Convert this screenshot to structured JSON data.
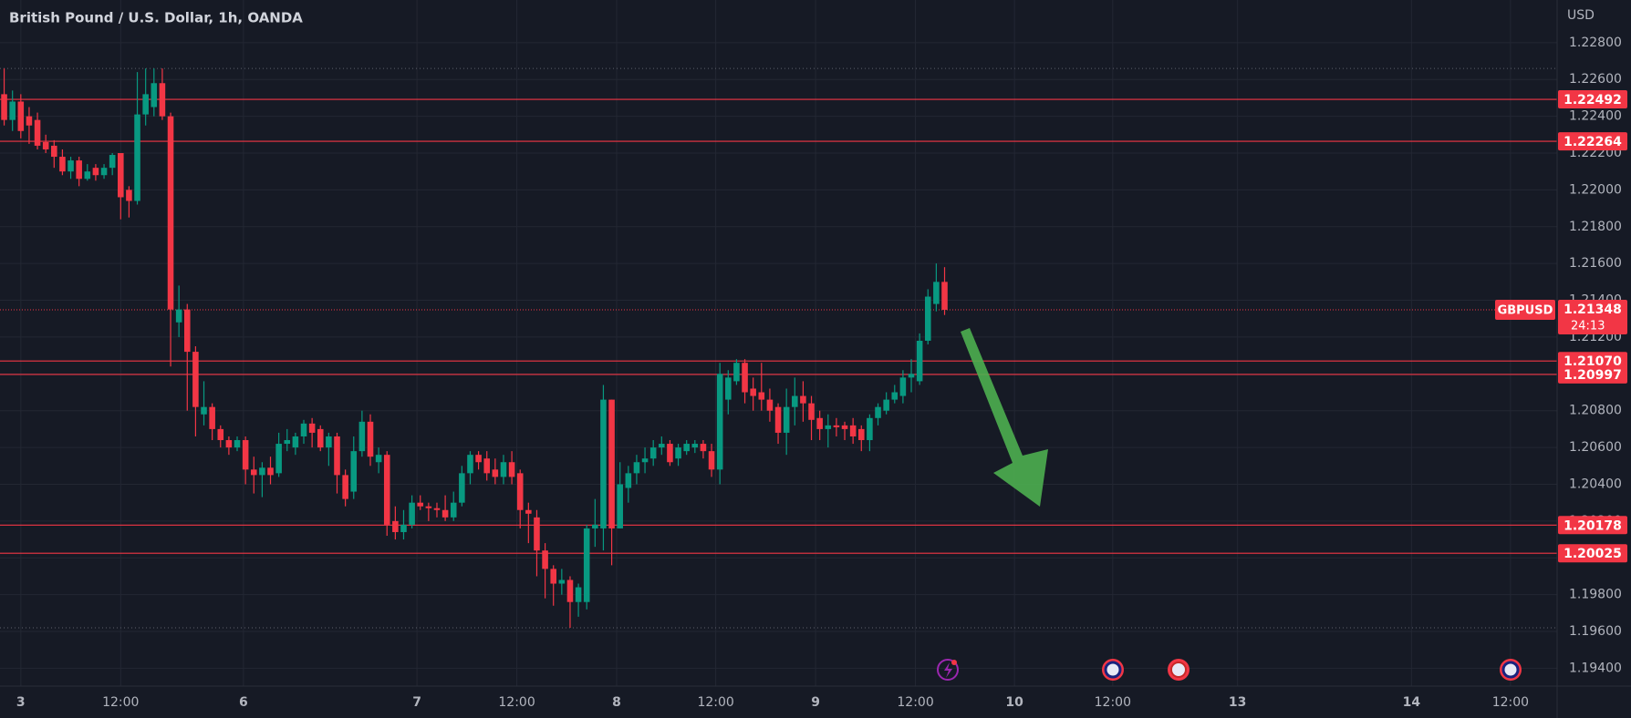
{
  "chart_data": {
    "type": "candlestick",
    "title": "British Pound / U.S. Dollar, 1h, OANDA",
    "currency": "USD",
    "symbol": "GBPUSD",
    "countdown": "24:13",
    "x": [
      0,
      1,
      2,
      3,
      4,
      5,
      6,
      7,
      8,
      9,
      10,
      11,
      12,
      13,
      14,
      15,
      16,
      17,
      18,
      19,
      20,
      21,
      22,
      23,
      24,
      25,
      26,
      27,
      28,
      29,
      30,
      31,
      32,
      33,
      34,
      35,
      36,
      37,
      38,
      39,
      40,
      41,
      42,
      43,
      44,
      45,
      46,
      47,
      48,
      49,
      50,
      51,
      52,
      53,
      54,
      55,
      56,
      57,
      58,
      59,
      60,
      61,
      62,
      63,
      64,
      65,
      66,
      67,
      68,
      69,
      70,
      71,
      72,
      73,
      74,
      75,
      76,
      77,
      78,
      79,
      80,
      81,
      82,
      83,
      84,
      85,
      86,
      87,
      88,
      89,
      90,
      91,
      92,
      93,
      94,
      95,
      96,
      97,
      98,
      99,
      100,
      101,
      102,
      103,
      104,
      105,
      106,
      107,
      108,
      109,
      110,
      111,
      112,
      113
    ],
    "open": [
      1.2252,
      1.2238,
      1.2248,
      1.224,
      1.2238,
      1.2226,
      1.2224,
      1.2218,
      1.221,
      1.2216,
      1.2206,
      1.2212,
      1.2208,
      1.2212,
      1.222,
      1.22,
      1.2194,
      1.2241,
      1.2245,
      1.2258,
      1.224,
      1.2128,
      1.2135,
      1.2112,
      1.2078,
      1.2082,
      1.207,
      1.2064,
      1.206,
      1.2064,
      1.2048,
      1.2045,
      1.2049,
      1.2046,
      1.2062,
      1.206,
      1.2066,
      1.2073,
      1.207,
      1.206,
      1.2066,
      1.2045,
      1.2036,
      1.2058,
      1.2074,
      1.2052,
      1.2056,
      1.202,
      1.2014,
      1.2018,
      1.203,
      1.2028,
      1.2027,
      1.2026,
      1.2022,
      1.203,
      1.2046,
      1.2056,
      1.2054,
      1.2048,
      1.2044,
      1.2052,
      1.2046,
      1.2026,
      1.2022,
      1.2004,
      1.1994,
      1.1986,
      1.1988,
      1.1976,
      1.1976,
      1.2016,
      1.2016,
      1.2086,
      1.2016,
      1.2038,
      1.2046,
      1.2052,
      1.2054,
      1.206,
      1.2062,
      1.2054,
      1.2058,
      1.206,
      1.2062,
      1.2058,
      1.2048,
      1.2086,
      1.2096,
      1.2106,
      1.2092,
      1.209,
      1.2086,
      1.2082,
      1.2068,
      1.2082,
      1.2088,
      1.2084,
      1.2076,
      1.207,
      1.2072,
      1.2072,
      1.2072,
      1.207,
      1.2064,
      1.2076,
      1.208,
      1.2086,
      1.2088,
      1.2098,
      1.2096,
      1.2118,
      1.2138,
      1.215
    ],
    "high": [
      1.2266,
      1.2254,
      1.2252,
      1.2245,
      1.2242,
      1.223,
      1.2227,
      1.2222,
      1.2218,
      1.2218,
      1.2214,
      1.2214,
      1.2214,
      1.222,
      1.222,
      1.2202,
      1.2264,
      1.2266,
      1.2266,
      1.2266,
      1.2242,
      1.2148,
      1.2138,
      1.2115,
      1.2096,
      1.2084,
      1.2072,
      1.2066,
      1.2066,
      1.2066,
      1.2055,
      1.2052,
      1.2055,
      1.2068,
      1.207,
      1.2068,
      1.2075,
      1.2076,
      1.2072,
      1.2068,
      1.2068,
      1.2048,
      1.2066,
      1.208,
      1.2078,
      1.206,
      1.2058,
      1.2028,
      1.2026,
      1.2034,
      1.2034,
      1.203,
      1.203,
      1.2034,
      1.2036,
      1.205,
      1.2058,
      1.2058,
      1.2058,
      1.2054,
      1.2056,
      1.2058,
      1.2048,
      1.203,
      1.2026,
      1.2008,
      1.1996,
      1.1994,
      1.199,
      1.1986,
      1.2018,
      1.2032,
      1.2094,
      1.2086,
      1.2052,
      1.205,
      1.2056,
      1.206,
      1.2064,
      1.2066,
      1.2064,
      1.2062,
      1.2064,
      1.2064,
      1.2064,
      1.2062,
      1.2106,
      1.2102,
      1.2108,
      1.2108,
      1.2098,
      1.2106,
      1.2092,
      1.2084,
      1.2092,
      1.2098,
      1.2096,
      1.2088,
      1.208,
      1.2078,
      1.2076,
      1.2074,
      1.2076,
      1.2072,
      1.2078,
      1.2084,
      1.209,
      1.2094,
      1.2102,
      1.2108,
      1.2122,
      1.2146,
      1.216,
      1.2158
    ],
    "low": [
      1.2235,
      1.2232,
      1.2228,
      1.2225,
      1.2222,
      1.222,
      1.2212,
      1.2208,
      1.2206,
      1.2202,
      1.2205,
      1.2205,
      1.2206,
      1.2208,
      1.2184,
      1.2185,
      1.2192,
      1.2235,
      1.224,
      1.2238,
      1.2104,
      1.212,
      1.208,
      1.2066,
      1.2072,
      1.2064,
      1.206,
      1.2056,
      1.2058,
      1.204,
      1.2035,
      1.2033,
      1.204,
      1.2044,
      1.2058,
      1.2056,
      1.2062,
      1.206,
      1.2058,
      1.205,
      1.2035,
      1.2028,
      1.2032,
      1.2055,
      1.205,
      1.2046,
      1.2012,
      1.201,
      1.201,
      1.2016,
      1.2026,
      1.202,
      1.2022,
      1.202,
      1.202,
      1.2028,
      1.204,
      1.2048,
      1.2042,
      1.204,
      1.204,
      1.204,
      1.2016,
      1.2008,
      1.199,
      1.1978,
      1.1974,
      1.198,
      1.1962,
      1.1968,
      1.1972,
      1.2006,
      1.2004,
      1.1996,
      1.2016,
      1.203,
      1.204,
      1.2046,
      1.205,
      1.2056,
      1.205,
      1.205,
      1.2056,
      1.2057,
      1.2054,
      1.2044,
      1.204,
      1.2078,
      1.2094,
      1.2084,
      1.208,
      1.208,
      1.2074,
      1.2062,
      1.2056,
      1.2072,
      1.2074,
      1.2064,
      1.2064,
      1.206,
      1.2066,
      1.2064,
      1.2062,
      1.2058,
      1.2058,
      1.2072,
      1.2078,
      1.2084,
      1.2084,
      1.209,
      1.2094,
      1.2116,
      1.2134,
      1.2132
    ],
    "close": [
      1.2238,
      1.2248,
      1.2232,
      1.2235,
      1.2224,
      1.2222,
      1.2218,
      1.221,
      1.2216,
      1.2206,
      1.221,
      1.2208,
      1.2212,
      1.2219,
      1.2196,
      1.2194,
      1.2241,
      1.2252,
      1.2258,
      1.224,
      1.2135,
      1.2135,
      1.2112,
      1.2082,
      1.2082,
      1.207,
      1.2064,
      1.206,
      1.2064,
      1.2048,
      1.2045,
      1.2049,
      1.2045,
      1.2062,
      1.2064,
      1.2066,
      1.2073,
      1.2068,
      1.206,
      1.2066,
      1.2045,
      1.2032,
      1.2058,
      1.2074,
      1.2055,
      1.2056,
      1.2018,
      1.2014,
      1.2018,
      1.203,
      1.2028,
      1.2027,
      1.2026,
      1.2022,
      1.203,
      1.2046,
      1.2056,
      1.2052,
      1.2046,
      1.2044,
      1.2052,
      1.2044,
      1.2026,
      1.2024,
      1.2004,
      1.1994,
      1.1986,
      1.1988,
      1.1976,
      1.1984,
      1.2016,
      1.2018,
      1.2086,
      1.2016,
      1.204,
      1.2046,
      1.2052,
      1.2054,
      1.206,
      1.2062,
      1.2052,
      1.206,
      1.2062,
      1.2062,
      1.2058,
      1.2048,
      1.21,
      1.2098,
      1.2106,
      1.209,
      1.2088,
      1.2086,
      1.208,
      1.2068,
      1.2082,
      1.2088,
      1.2084,
      1.2075,
      1.207,
      1.2072,
      1.2071,
      1.207,
      1.2066,
      1.2064,
      1.2076,
      1.2082,
      1.2086,
      1.209,
      1.2098,
      1.21,
      1.2118,
      1.2142,
      1.215,
      1.21348
    ],
    "up_color": "#089981",
    "down_color": "#f23645",
    "level_color": "#f23645",
    "xlim": [
      -0.5,
      186.6
    ],
    "xticks": [
      {
        "value": 2,
        "label": "3"
      },
      {
        "value": 14,
        "label": "12:00"
      },
      {
        "value": 28.75,
        "label": "6"
      },
      {
        "value": 49.6,
        "label": "7"
      },
      {
        "value": 61.6,
        "label": "12:00"
      },
      {
        "value": 73.6,
        "label": "8"
      },
      {
        "value": 85.5,
        "label": "12:00"
      },
      {
        "value": 97.5,
        "label": "9"
      },
      {
        "value": 109.5,
        "label": "12:00"
      },
      {
        "value": 121.4,
        "label": "10"
      },
      {
        "value": 133.2,
        "label": "12:00"
      },
      {
        "value": 148.2,
        "label": "13"
      },
      {
        "value": 169.1,
        "label": "14"
      },
      {
        "value": 181,
        "label": "12:00"
      }
    ],
    "ylim": [
      1.19303,
      1.23032
    ],
    "yticks": [
      {
        "value": 1.194,
        "label": "1.19400"
      },
      {
        "value": 1.196,
        "label": "1.19600"
      },
      {
        "value": 1.198,
        "label": "1.19800"
      },
      {
        "value": 1.2,
        "label": "1.20000"
      },
      {
        "value": 1.202,
        "label": "1.20200"
      },
      {
        "value": 1.204,
        "label": "1.20400"
      },
      {
        "value": 1.206,
        "label": "1.20600"
      },
      {
        "value": 1.208,
        "label": "1.20800"
      },
      {
        "value": 1.21,
        "label": "1.21000"
      },
      {
        "value": 1.212,
        "label": "1.21200"
      },
      {
        "value": 1.214,
        "label": "1.21400"
      },
      {
        "value": 1.216,
        "label": "1.21600"
      },
      {
        "value": 1.218,
        "label": "1.21800"
      },
      {
        "value": 1.22,
        "label": "1.22000"
      },
      {
        "value": 1.222,
        "label": "1.22200"
      },
      {
        "value": 1.224,
        "label": "1.22400"
      },
      {
        "value": 1.226,
        "label": "1.22600"
      },
      {
        "value": 1.228,
        "label": "1.22800"
      }
    ],
    "grid": true,
    "levels": [
      1.22492,
      1.22264,
      {
        "value": 1.2107,
        "label": "1.21070"
      },
      1.20997,
      1.20178,
      1.20025
    ],
    "range_lines": [
      1.2266,
      1.1962
    ],
    "last_price": 1.21348
  }
}
